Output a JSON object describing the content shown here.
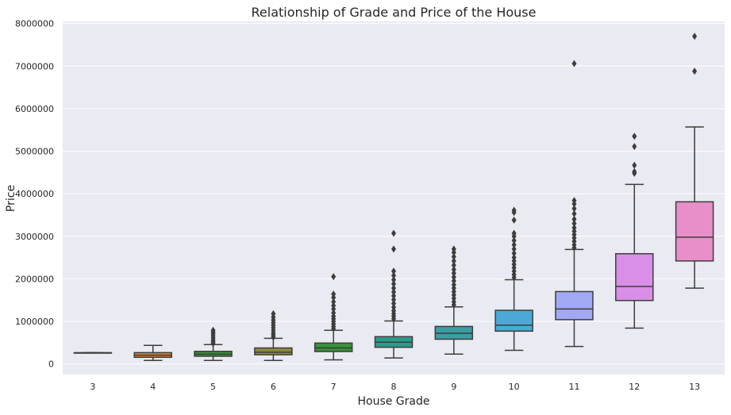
{
  "chart_data": {
    "type": "box",
    "title": "Relationship of Grade and Price of the House",
    "xlabel": "House Grade",
    "ylabel": "Price",
    "ylim": [
      -250000,
      8050000
    ],
    "yticks": [
      0,
      1000000,
      2000000,
      3000000,
      4000000,
      5000000,
      6000000,
      7000000,
      8000000
    ],
    "ytick_labels": [
      "0",
      "1000000",
      "2000000",
      "3000000",
      "4000000",
      "5000000",
      "6000000",
      "7000000",
      "8000000"
    ],
    "grid": true,
    "categories": [
      "3",
      "4",
      "5",
      "6",
      "7",
      "8",
      "9",
      "10",
      "11",
      "12",
      "13"
    ],
    "boxes": [
      {
        "category": "3",
        "color": "#3b75af",
        "whisker_low": 262000,
        "q1": 262000,
        "median": 262000,
        "q3": 262000,
        "whisker_high": 262000,
        "outliers": []
      },
      {
        "category": "4",
        "color": "#e1812c",
        "whisker_low": 80000,
        "q1": 155000,
        "median": 205000,
        "q3": 265000,
        "whisker_high": 435000,
        "outliers": []
      },
      {
        "category": "5",
        "color": "#3a923a",
        "whisker_low": 80000,
        "q1": 180000,
        "median": 228000,
        "q3": 295000,
        "whisker_high": 455000,
        "outliers": [
          480000,
          520000,
          560000,
          610000,
          660000,
          705000,
          745000,
          790000
        ]
      },
      {
        "category": "6",
        "color": "#8c8a3a",
        "whisker_low": 80000,
        "q1": 215000,
        "median": 275000,
        "q3": 375000,
        "whisker_high": 600000,
        "outliers": [
          630000,
          680000,
          730000,
          790000,
          850000,
          910000,
          970000,
          1030000,
          1100000,
          1180000
        ]
      },
      {
        "category": "7",
        "color": "#3a923a",
        "whisker_low": 95000,
        "q1": 290000,
        "median": 375000,
        "q3": 490000,
        "whisker_high": 790000,
        "outliers": [
          830000,
          880000,
          940000,
          1000000,
          1060000,
          1120000,
          1200000,
          1290000,
          1370000,
          1460000,
          1560000,
          1640000,
          2050000
        ]
      },
      {
        "category": "8",
        "color": "#2a9d8a",
        "whisker_low": 140000,
        "q1": 390000,
        "median": 510000,
        "q3": 640000,
        "whisker_high": 1010000,
        "outliers": [
          1060000,
          1120000,
          1180000,
          1250000,
          1330000,
          1420000,
          1510000,
          1600000,
          1690000,
          1780000,
          1880000,
          1980000,
          2080000,
          2180000,
          2700000,
          3070000
        ]
      },
      {
        "category": "9",
        "color": "#3a9ea3",
        "whisker_low": 230000,
        "q1": 580000,
        "median": 720000,
        "q3": 880000,
        "whisker_high": 1340000,
        "outliers": [
          1390000,
          1460000,
          1540000,
          1620000,
          1700000,
          1780000,
          1860000,
          1950000,
          2040000,
          2130000,
          2220000,
          2320000,
          2420000,
          2520000,
          2620000,
          2700000
        ]
      },
      {
        "category": "10",
        "color": "#4aa9d6",
        "whisker_low": 320000,
        "q1": 770000,
        "median": 910000,
        "q3": 1260000,
        "whisker_high": 1980000,
        "outliers": [
          2030000,
          2100000,
          2180000,
          2260000,
          2340000,
          2420000,
          2500000,
          2600000,
          2700000,
          2800000,
          2900000,
          3000000,
          3070000,
          3380000,
          3560000,
          3610000
        ]
      },
      {
        "category": "11",
        "color": "#a1a9f4",
        "whisker_low": 410000,
        "q1": 1040000,
        "median": 1290000,
        "q3": 1700000,
        "whisker_high": 2690000,
        "outliers": [
          2730000,
          2800000,
          2880000,
          2960000,
          3040000,
          3120000,
          3200000,
          3300000,
          3400000,
          3530000,
          3650000,
          3760000,
          3840000,
          7060000
        ]
      },
      {
        "category": "12",
        "color": "#d98fe8",
        "whisker_low": 840000,
        "q1": 1490000,
        "median": 1820000,
        "q3": 2590000,
        "whisker_high": 4220000,
        "outliers": [
          4480000,
          4520000,
          4670000,
          5110000,
          5350000
        ]
      },
      {
        "category": "13",
        "color": "#e88fc9",
        "whisker_low": 1780000,
        "q1": 2420000,
        "median": 2980000,
        "q3": 3810000,
        "whisker_high": 5570000,
        "outliers": [
          6880000,
          7700000
        ]
      }
    ]
  }
}
